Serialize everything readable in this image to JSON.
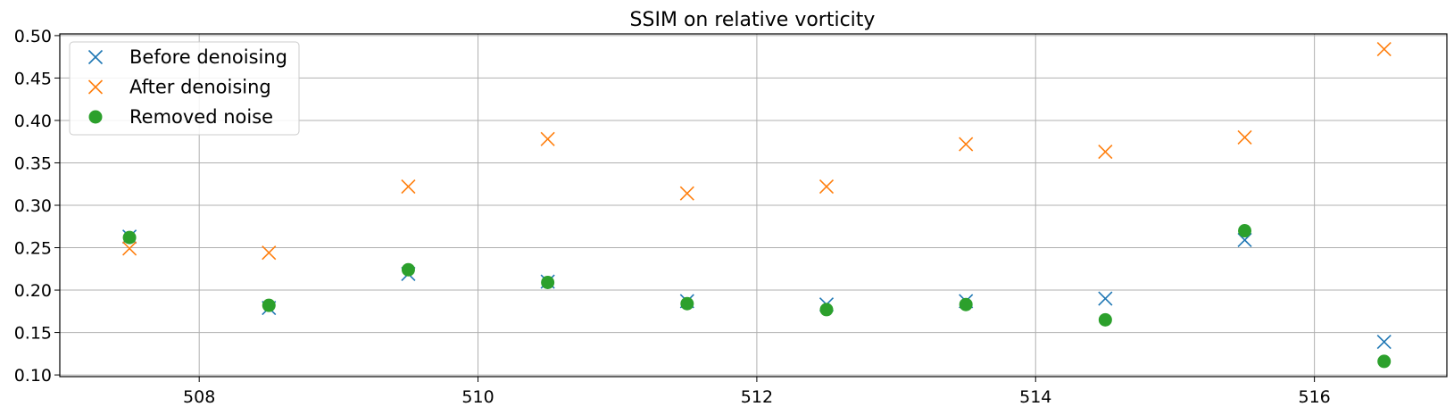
{
  "chart_data": {
    "type": "scatter",
    "title": "SSIM on relative vorticity",
    "xlabel": "",
    "ylabel": "",
    "xlim": [
      507.0,
      516.95
    ],
    "ylim": [
      0.098,
      0.502
    ],
    "xticks": [
      508,
      510,
      512,
      514,
      516
    ],
    "yticks": [
      0.1,
      0.15,
      0.2,
      0.25,
      0.3,
      0.35,
      0.4,
      0.45,
      0.5
    ],
    "grid": true,
    "legend_position": "top-left",
    "x": [
      507.5,
      508.5,
      509.5,
      510.5,
      511.5,
      512.5,
      513.5,
      514.5,
      515.5,
      516.5
    ],
    "series": [
      {
        "name": "Before denoising",
        "marker": "x",
        "color": "#1f77b4",
        "values": [
          0.263,
          0.179,
          0.219,
          0.21,
          0.187,
          0.183,
          0.187,
          0.19,
          0.259,
          0.139
        ]
      },
      {
        "name": "After denoising",
        "marker": "x",
        "color": "#ff7f0e",
        "values": [
          0.249,
          0.244,
          0.322,
          0.378,
          0.314,
          0.322,
          0.372,
          0.363,
          0.38,
          0.484
        ]
      },
      {
        "name": "Removed noise",
        "marker": "o",
        "color": "#2ca02c",
        "values": [
          0.262,
          0.182,
          0.224,
          0.209,
          0.184,
          0.177,
          0.183,
          0.165,
          0.27,
          0.116
        ]
      }
    ]
  }
}
